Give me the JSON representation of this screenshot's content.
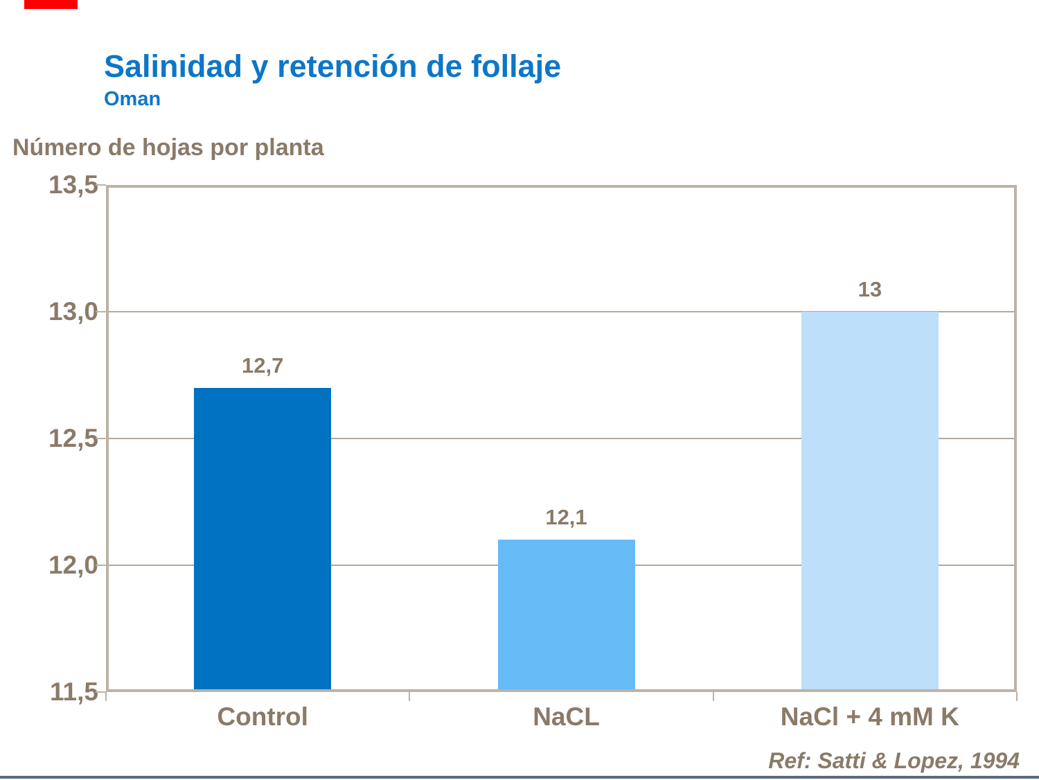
{
  "header": {
    "title": "Salinidad y retención de follaje",
    "subtitle": "Oman",
    "title_color": "#0D76C8"
  },
  "chart_data": {
    "type": "bar",
    "title": "Salinidad y retención de follaje",
    "subtitle": "Oman",
    "ylabel": "Número de hojas por planta",
    "xlabel": "",
    "categories": [
      "Control",
      "NaCL",
      "NaCl + 4 mM K"
    ],
    "values": [
      12.7,
      12.1,
      13
    ],
    "value_labels": [
      "12,7",
      "12,1",
      "13"
    ],
    "bar_colors": [
      "#0072BF",
      "#66BBF7",
      "#BDDFFA"
    ],
    "ylim": [
      11.5,
      13.5
    ],
    "ytick_values": [
      13.5,
      13.0,
      12.5,
      12.0,
      11.5
    ],
    "ytick_labels": [
      "13,5",
      "13,0",
      "12,5",
      "12,0",
      "11,5"
    ],
    "grid": true,
    "legend": false
  },
  "footer": {
    "reference": "Ref: Satti & Lopez, 1994"
  },
  "decor": {
    "red_accent_color": "#FF0000",
    "frame_color": "#BCB2A6",
    "gridline_color": "#B2A89C",
    "text_color": "#8A7A68",
    "bottom_line_color": "#5B6B80"
  }
}
